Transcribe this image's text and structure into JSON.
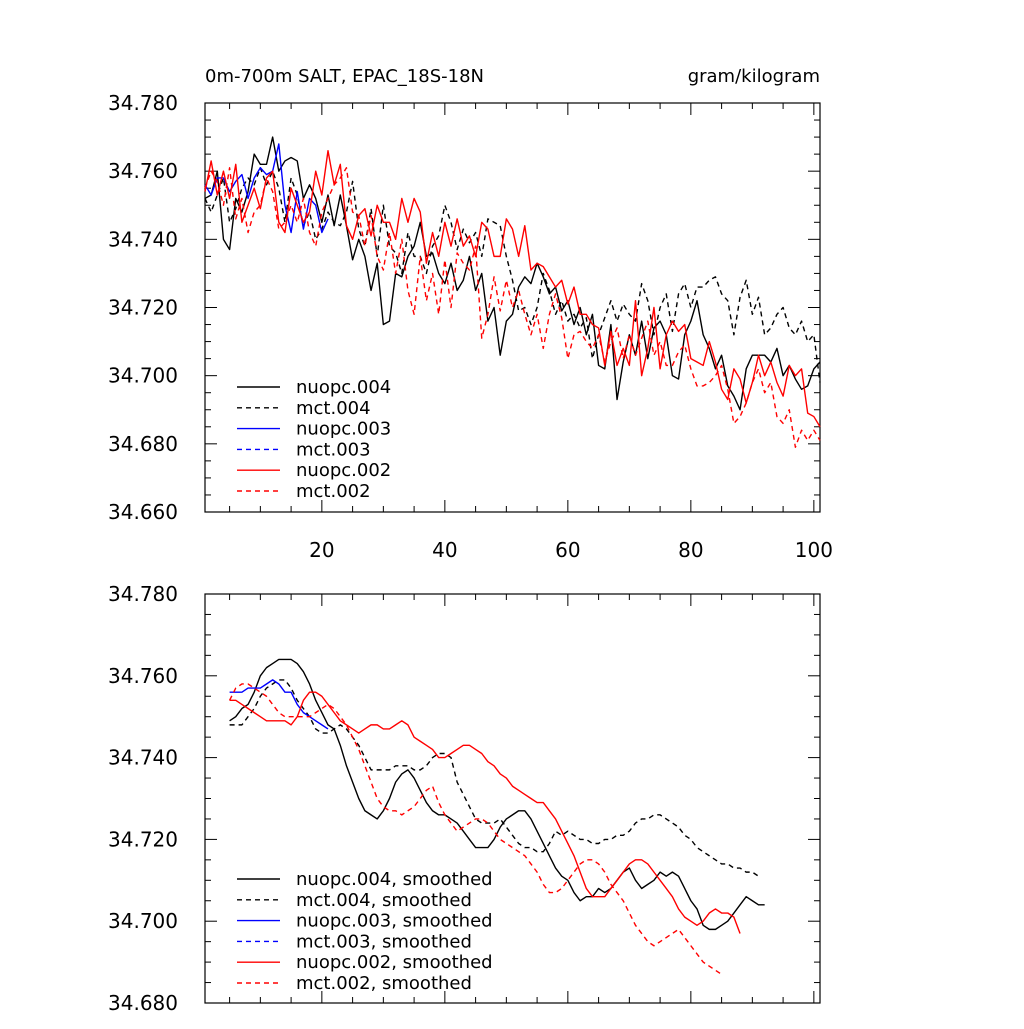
{
  "chart_data": [
    {
      "type": "line",
      "title_left": "0m-700m SALT, EPAC_18S-18N",
      "title_right": "gram/kilogram",
      "xlim": [
        1,
        101
      ],
      "ylim": [
        34.66,
        34.78
      ],
      "x_ticks": [
        20,
        40,
        60,
        80,
        100
      ],
      "x_tick_labels": [
        "20",
        "40",
        "60",
        "80",
        "100"
      ],
      "y_ticks": [
        34.66,
        34.68,
        34.7,
        34.72,
        34.74,
        34.76,
        34.78
      ],
      "y_tick_labels": [
        "34.660",
        "34.680",
        "34.700",
        "34.720",
        "34.740",
        "34.760",
        "34.780"
      ],
      "legend_position": "bottom-left",
      "series": [
        {
          "name": "nuopc.004",
          "color": "#000000",
          "dash": "solid",
          "x_start": 1,
          "values": [
            34.752,
            34.753,
            34.76,
            34.74,
            34.737,
            34.752,
            34.748,
            34.754,
            34.765,
            34.762,
            34.762,
            34.77,
            34.76,
            34.763,
            34.764,
            34.763,
            34.752,
            34.756,
            34.752,
            34.745,
            34.753,
            34.744,
            34.753,
            34.744,
            34.734,
            34.74,
            34.735,
            34.725,
            34.733,
            34.715,
            34.716,
            34.73,
            34.729,
            34.735,
            34.738,
            34.745,
            34.735,
            34.736,
            34.73,
            34.727,
            34.733,
            34.725,
            34.728,
            34.735,
            34.725,
            34.73,
            34.716,
            34.72,
            34.706,
            34.716,
            34.718,
            34.726,
            34.729,
            34.727,
            34.733,
            34.729,
            34.724,
            34.726,
            34.719,
            34.722,
            34.715,
            34.72,
            34.712,
            34.718,
            34.703,
            34.702,
            34.715,
            34.693,
            34.704,
            34.712,
            34.706,
            34.716,
            34.705,
            34.714,
            34.716,
            34.712,
            34.7,
            34.699,
            34.712,
            34.716,
            34.722,
            34.712,
            34.708,
            34.702,
            34.706,
            34.697,
            34.694,
            34.69,
            34.702,
            34.706,
            34.706,
            34.706,
            34.704,
            34.708,
            34.7,
            34.703,
            34.699,
            34.696,
            34.697,
            34.702,
            34.704
          ]
        },
        {
          "name": "mct.004",
          "color": "#000000",
          "dash": "dashed",
          "x_start": 1,
          "values": [
            34.752,
            34.748,
            34.753,
            34.758,
            34.745,
            34.749,
            34.755,
            34.758,
            34.756,
            34.761,
            34.756,
            34.76,
            34.755,
            34.745,
            34.758,
            34.753,
            34.744,
            34.748,
            34.74,
            34.743,
            34.748,
            34.745,
            34.744,
            34.748,
            34.757,
            34.743,
            34.738,
            34.749,
            34.735,
            34.75,
            34.738,
            34.736,
            34.73,
            34.742,
            34.735,
            34.735,
            34.73,
            34.738,
            34.741,
            34.75,
            34.745,
            34.737,
            34.743,
            34.739,
            34.742,
            34.735,
            34.746,
            34.745,
            34.744,
            34.735,
            34.728,
            34.719,
            34.72,
            34.715,
            34.72,
            34.73,
            34.725,
            34.718,
            34.722,
            34.716,
            34.718,
            34.714,
            34.717,
            34.705,
            34.712,
            34.717,
            34.722,
            34.716,
            34.721,
            34.718,
            34.716,
            34.727,
            34.722,
            34.712,
            34.72,
            34.724,
            34.713,
            34.724,
            34.727,
            34.72,
            34.726,
            34.726,
            34.728,
            34.729,
            34.724,
            34.722,
            34.712,
            34.723,
            34.728,
            34.718,
            34.723,
            34.712,
            34.714,
            34.718,
            34.72,
            34.714,
            34.712,
            34.716,
            34.71,
            34.712,
            34.698
          ]
        },
        {
          "name": "nuopc.003",
          "color": "#0000ff",
          "dash": "solid",
          "x_start": 1,
          "values": [
            34.756,
            34.753,
            34.758,
            34.758,
            34.754,
            34.757,
            34.759,
            34.752,
            34.758,
            34.761,
            34.759,
            34.76,
            34.768,
            34.75,
            34.742,
            34.754,
            34.743,
            34.752,
            34.75,
            34.742,
            34.746
          ]
        },
        {
          "name": "mct.003",
          "color": "#0000ff",
          "dash": "dashed",
          "x_start": 1,
          "values": []
        },
        {
          "name": "nuopc.002",
          "color": "#ff0000",
          "dash": "solid",
          "x_start": 1,
          "values": [
            34.754,
            34.763,
            34.753,
            34.76,
            34.752,
            34.762,
            34.745,
            34.75,
            34.755,
            34.749,
            34.758,
            34.76,
            34.745,
            34.742,
            34.755,
            34.75,
            34.745,
            34.748,
            34.76,
            34.753,
            34.766,
            34.756,
            34.762,
            34.744,
            34.74,
            34.747,
            34.749,
            34.741,
            34.75,
            34.745,
            34.745,
            34.74,
            34.752,
            34.745,
            34.752,
            34.748,
            34.733,
            34.742,
            34.735,
            34.745,
            34.738,
            34.746,
            34.738,
            34.741,
            34.735,
            34.745,
            34.743,
            34.735,
            34.735,
            34.746,
            34.743,
            34.735,
            34.744,
            34.731,
            34.733,
            34.732,
            34.729,
            34.726,
            34.728,
            34.721,
            34.726,
            34.718,
            34.718,
            34.715,
            34.714,
            34.703,
            34.713,
            34.703,
            34.708,
            34.703,
            34.722,
            34.7,
            34.708,
            34.72,
            34.702,
            34.712,
            34.716,
            34.713,
            34.715,
            34.705,
            34.704,
            34.703,
            34.71,
            34.704,
            34.696,
            34.693,
            34.702,
            34.699,
            34.692,
            34.698,
            34.706,
            34.7,
            34.704,
            34.698,
            34.694,
            34.703,
            34.7,
            34.702,
            34.689,
            34.688,
            34.685
          ]
        },
        {
          "name": "mct.002",
          "color": "#ff0000",
          "dash": "dashed",
          "x_start": 1,
          "values": [
            34.755,
            34.76,
            34.757,
            34.75,
            34.761,
            34.746,
            34.752,
            34.742,
            34.748,
            34.75,
            34.758,
            34.754,
            34.743,
            34.745,
            34.75,
            34.745,
            34.752,
            34.742,
            34.738,
            34.748,
            34.752,
            34.756,
            34.758,
            34.761,
            34.748,
            34.747,
            34.738,
            34.747,
            34.735,
            34.731,
            34.742,
            34.73,
            34.74,
            34.725,
            34.718,
            34.735,
            34.722,
            34.73,
            34.718,
            34.734,
            34.72,
            34.736,
            34.733,
            34.731,
            34.738,
            34.711,
            34.718,
            34.729,
            34.719,
            34.728,
            34.72,
            34.725,
            34.718,
            34.712,
            34.718,
            34.708,
            34.718,
            34.724,
            34.717,
            34.705,
            34.712,
            34.713,
            34.71,
            34.708,
            34.712,
            34.704,
            34.71,
            34.714,
            34.705,
            34.712,
            34.706,
            34.711,
            34.716,
            34.706,
            34.71,
            34.703,
            34.703,
            34.707,
            34.709,
            34.702,
            34.697,
            34.697,
            34.698,
            34.7,
            34.703,
            34.696,
            34.686,
            34.688,
            34.692,
            34.698,
            34.702,
            34.695,
            34.698,
            34.688,
            34.686,
            34.69,
            34.679,
            34.684,
            34.681,
            34.684,
            34.681
          ]
        }
      ]
    },
    {
      "type": "line",
      "xlim": [
        1,
        101
      ],
      "ylim": [
        34.68,
        34.78
      ],
      "x_ticks": [
        20,
        40,
        60,
        80,
        100
      ],
      "y_ticks": [
        34.68,
        34.7,
        34.72,
        34.74,
        34.76,
        34.78
      ],
      "y_tick_labels": [
        "34.680",
        "34.700",
        "34.720",
        "34.740",
        "34.760",
        "34.780"
      ],
      "legend_position": "bottom-left",
      "series": [
        {
          "name": "nuopc.004, smoothed",
          "color": "#000000",
          "dash": "solid",
          "x_start": 5,
          "values": [
            34.749,
            34.75,
            34.752,
            34.753,
            34.756,
            34.76,
            34.762,
            34.763,
            34.764,
            34.764,
            34.764,
            34.763,
            34.761,
            34.758,
            34.754,
            34.751,
            34.748,
            34.747,
            34.743,
            34.738,
            34.734,
            34.73,
            34.727,
            34.726,
            34.725,
            34.727,
            34.73,
            34.734,
            34.736,
            34.737,
            34.735,
            34.732,
            34.729,
            34.727,
            34.726,
            34.726,
            34.725,
            34.724,
            34.722,
            34.72,
            34.718,
            34.718,
            34.718,
            34.72,
            34.723,
            34.725,
            34.726,
            34.727,
            34.727,
            34.725,
            34.722,
            34.719,
            34.716,
            34.713,
            34.711,
            34.71,
            34.707,
            34.705,
            34.706,
            34.706,
            34.708,
            34.707,
            34.708,
            34.71,
            34.712,
            34.713,
            34.71,
            34.708,
            34.709,
            34.71,
            34.712,
            34.711,
            34.712,
            34.711,
            34.708,
            34.705,
            34.703,
            34.699,
            34.698,
            34.698,
            34.699,
            34.7,
            34.702,
            34.704,
            34.706,
            34.705,
            34.704,
            34.704
          ]
        },
        {
          "name": "mct.004, smoothed",
          "color": "#000000",
          "dash": "dashed",
          "x_start": 5,
          "values": [
            34.748,
            34.748,
            34.748,
            34.75,
            34.752,
            34.755,
            34.757,
            34.758,
            34.759,
            34.759,
            34.757,
            34.754,
            34.752,
            34.75,
            34.747,
            34.746,
            34.746,
            34.747,
            34.748,
            34.747,
            34.745,
            34.743,
            34.74,
            34.737,
            34.737,
            34.737,
            34.737,
            34.738,
            34.738,
            34.738,
            34.737,
            34.737,
            34.738,
            34.74,
            34.741,
            34.741,
            34.74,
            34.734,
            34.731,
            34.728,
            34.725,
            34.724,
            34.724,
            34.724,
            34.725,
            34.723,
            34.721,
            34.719,
            34.718,
            34.718,
            34.717,
            34.717,
            34.719,
            34.722,
            34.721,
            34.722,
            34.721,
            34.72,
            34.72,
            34.719,
            34.719,
            34.72,
            34.72,
            34.721,
            34.721,
            34.722,
            34.724,
            34.725,
            34.725,
            34.726,
            34.726,
            34.725,
            34.724,
            34.723,
            34.721,
            34.72,
            34.718,
            34.717,
            34.716,
            34.715,
            34.714,
            34.714,
            34.713,
            34.713,
            34.712,
            34.712,
            34.711
          ]
        },
        {
          "name": "nuopc.003, smoothed",
          "color": "#0000ff",
          "dash": "solid",
          "x_start": 5,
          "values": [
            34.756,
            34.756,
            34.756,
            34.757,
            34.757,
            34.757,
            34.758,
            34.759,
            34.758,
            34.756,
            34.756,
            34.753,
            34.751,
            34.75,
            34.749,
            34.748,
            34.747
          ]
        },
        {
          "name": "mct.003, smoothed",
          "color": "#0000ff",
          "dash": "dashed",
          "x_start": 5,
          "values": []
        },
        {
          "name": "nuopc.002, smoothed",
          "color": "#ff0000",
          "dash": "solid",
          "x_start": 5,
          "values": [
            34.754,
            34.754,
            34.753,
            34.752,
            34.751,
            34.75,
            34.749,
            34.749,
            34.749,
            34.749,
            34.748,
            34.75,
            34.754,
            34.756,
            34.756,
            34.755,
            34.753,
            34.751,
            34.749,
            34.748,
            34.747,
            34.746,
            34.747,
            34.748,
            34.748,
            34.747,
            34.747,
            34.748,
            34.749,
            34.748,
            34.745,
            34.744,
            34.743,
            34.742,
            34.74,
            34.74,
            34.741,
            34.742,
            34.743,
            34.743,
            34.742,
            34.741,
            34.739,
            34.738,
            34.736,
            34.735,
            34.733,
            34.732,
            34.731,
            34.73,
            34.729,
            34.729,
            34.727,
            34.725,
            34.722,
            34.719,
            34.716,
            34.712,
            34.708,
            34.706,
            34.706,
            34.706,
            34.708,
            34.71,
            34.712,
            34.714,
            34.715,
            34.715,
            34.714,
            34.712,
            34.71,
            34.708,
            34.706,
            34.703,
            34.701,
            34.7,
            34.699,
            34.7,
            34.702,
            34.703,
            34.702,
            34.702,
            34.701,
            34.697
          ]
        },
        {
          "name": "mct.002, smoothed",
          "color": "#ff0000",
          "dash": "dashed",
          "x_start": 5,
          "values": [
            34.754,
            34.757,
            34.758,
            34.758,
            34.757,
            34.756,
            34.755,
            34.753,
            34.751,
            34.75,
            34.75,
            34.75,
            34.75,
            34.75,
            34.751,
            34.752,
            34.753,
            34.752,
            34.75,
            34.748,
            34.745,
            34.742,
            34.738,
            34.734,
            34.73,
            34.728,
            34.727,
            34.727,
            34.726,
            34.727,
            34.728,
            34.73,
            34.732,
            34.733,
            34.729,
            34.726,
            34.724,
            34.722,
            34.723,
            34.724,
            34.725,
            34.725,
            34.724,
            34.722,
            34.72,
            34.719,
            34.718,
            34.717,
            34.716,
            34.714,
            34.712,
            34.709,
            34.707,
            34.707,
            34.708,
            34.71,
            34.712,
            34.714,
            34.715,
            34.715,
            34.714,
            34.712,
            34.709,
            34.707,
            34.705,
            34.702,
            34.699,
            34.697,
            34.695,
            34.694,
            34.695,
            34.696,
            34.697,
            34.698,
            34.696,
            34.694,
            34.692,
            34.69,
            34.689,
            34.688,
            34.687
          ]
        }
      ]
    }
  ]
}
